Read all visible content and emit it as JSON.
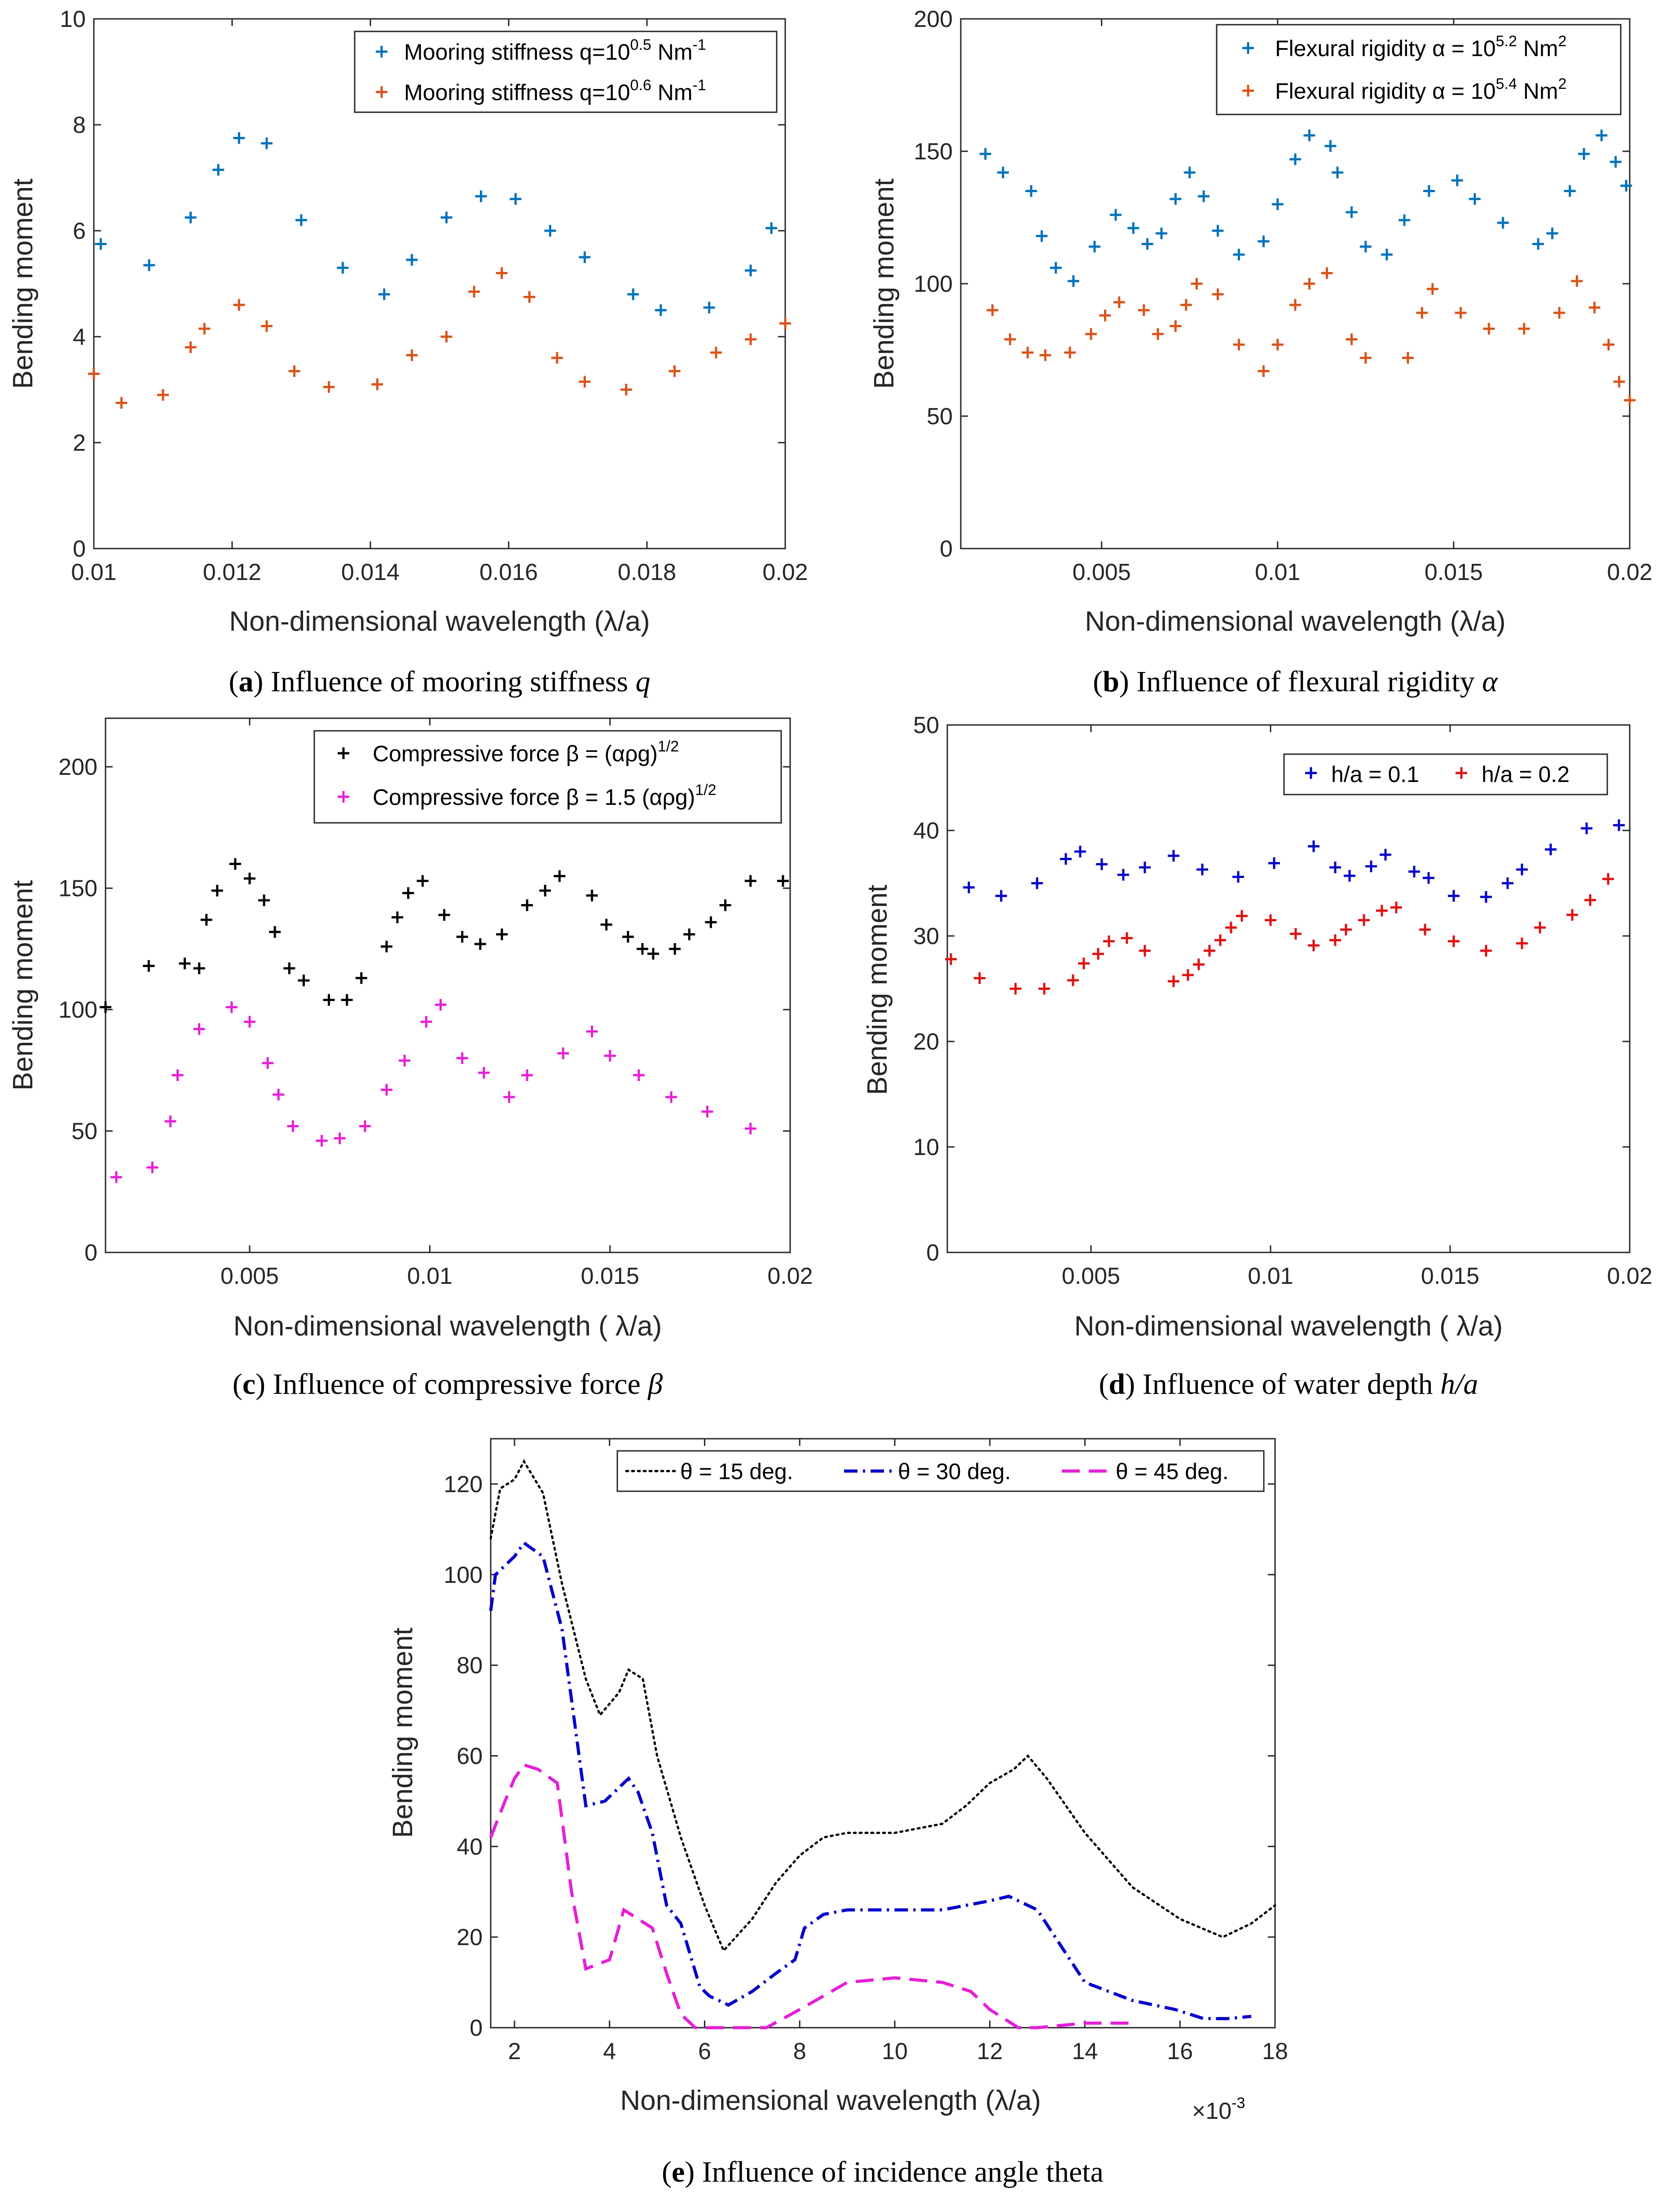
{
  "chart_data": [
    {
      "id": "a",
      "type": "scatter",
      "caption": {
        "letter": "a",
        "text": " Influence of mooring stiffness ",
        "symbol": "q"
      },
      "xlabel": "Non-dimensional wavelength (λ/a)",
      "ylabel": "Bending moment",
      "xlim": [
        0.01,
        0.02
      ],
      "ylim": [
        0,
        10
      ],
      "xticks": [
        0.01,
        0.012,
        0.014,
        0.016,
        0.018,
        0.02
      ],
      "xtick_labels": [
        "0.01",
        "0.012",
        "0.014",
        "0.016",
        "0.018",
        "0.02"
      ],
      "yticks": [
        0,
        2,
        4,
        6,
        8,
        10
      ],
      "ytick_labels": [
        "0",
        "2",
        "4",
        "6",
        "8",
        "10"
      ],
      "legend_position": "top-right",
      "series": [
        {
          "name_pre": "Mooring stiffness q=10",
          "name_sup": "0.5",
          "name_post": " Nm",
          "name_sup2": "-1",
          "color": "#0072BD",
          "x": [
            0.0101,
            0.0108,
            0.0114,
            0.0118,
            0.0121,
            0.0125,
            0.013,
            0.0136,
            0.0142,
            0.0146,
            0.0151,
            0.0156,
            0.0161,
            0.0166,
            0.0171,
            0.0178,
            0.0182,
            0.0189,
            0.0195,
            0.0198
          ],
          "y": [
            5.75,
            5.35,
            6.25,
            7.15,
            7.75,
            7.65,
            6.2,
            5.3,
            4.8,
            5.45,
            6.25,
            6.65,
            6.6,
            6.0,
            5.5,
            4.8,
            4.5,
            4.55,
            5.25,
            6.05
          ]
        },
        {
          "name_pre": "Mooring stiffness q=10",
          "name_sup": "0.6",
          "name_post": " Nm",
          "name_sup2": "-1",
          "color": "#D95319",
          "x": [
            0.01,
            0.0104,
            0.011,
            0.0114,
            0.0116,
            0.0121,
            0.0125,
            0.0129,
            0.0134,
            0.0141,
            0.0146,
            0.0151,
            0.0155,
            0.0159,
            0.0163,
            0.0167,
            0.0171,
            0.0177,
            0.0184,
            0.019,
            0.0195,
            0.02
          ],
          "y": [
            3.3,
            2.75,
            2.9,
            3.8,
            4.15,
            4.6,
            4.2,
            3.35,
            3.05,
            3.1,
            3.65,
            4.0,
            4.85,
            5.2,
            4.75,
            3.6,
            3.15,
            3.0,
            3.35,
            3.7,
            3.95,
            4.25
          ]
        }
      ]
    },
    {
      "id": "b",
      "type": "scatter",
      "caption": {
        "letter": "b",
        "text": " Influence of flexural rigidity ",
        "symbol": "α"
      },
      "xlabel": "Non-dimensional wavelength (λ/a)",
      "ylabel": "Bending moment",
      "xlim": [
        0.001,
        0.02
      ],
      "ylim": [
        0,
        200
      ],
      "xticks": [
        0.005,
        0.01,
        0.015,
        0.02
      ],
      "xtick_labels": [
        "0.005",
        "0.01",
        "0.015",
        "0.02"
      ],
      "yticks": [
        0,
        50,
        100,
        150,
        200
      ],
      "ytick_labels": [
        "0",
        "50",
        "100",
        "150",
        "200"
      ],
      "legend_position": "top-right",
      "series": [
        {
          "name_pre": "Flexural rigidity α = 10",
          "name_sup": "5.2",
          "name_post": " Nm",
          "name_sup2": "2",
          "color": "#0072BD",
          "x": [
            0.0017,
            0.0022,
            0.003,
            0.0033,
            0.0037,
            0.0042,
            0.0048,
            0.0054,
            0.0059,
            0.0063,
            0.0067,
            0.0071,
            0.0075,
            0.0079,
            0.0083,
            0.0089,
            0.0096,
            0.01,
            0.0105,
            0.0109,
            0.0115,
            0.0117,
            0.0121,
            0.0125,
            0.0131,
            0.0136,
            0.0143,
            0.0151,
            0.0156,
            0.0164,
            0.0174,
            0.0178,
            0.0183,
            0.0187,
            0.0192,
            0.0196,
            0.0199
          ],
          "y": [
            149,
            142,
            135,
            118,
            106,
            101,
            114,
            126,
            121,
            115,
            119,
            132,
            142,
            133,
            120,
            111,
            116,
            130,
            147,
            156,
            152,
            142,
            127,
            114,
            111,
            124,
            135,
            139,
            132,
            123,
            115,
            119,
            135,
            149,
            156,
            146,
            137
          ]
        },
        {
          "name_pre": "Flexural rigidity α = 10",
          "name_sup": "5.4",
          "name_post": " Nm",
          "name_sup2": "2",
          "color": "#D95319",
          "x": [
            0.0019,
            0.0024,
            0.0029,
            0.0034,
            0.0041,
            0.0047,
            0.0051,
            0.0055,
            0.0062,
            0.0066,
            0.0071,
            0.0074,
            0.0077,
            0.0083,
            0.0089,
            0.0096,
            0.01,
            0.0105,
            0.0109,
            0.0114,
            0.0121,
            0.0125,
            0.0137,
            0.0141,
            0.0144,
            0.0152,
            0.016,
            0.017,
            0.018,
            0.0185,
            0.019,
            0.0194,
            0.0197,
            0.02
          ],
          "y": [
            90,
            79,
            74,
            73,
            74,
            81,
            88,
            93,
            90,
            81,
            84,
            92,
            100,
            96,
            77,
            67,
            77,
            92,
            100,
            104,
            79,
            72,
            72,
            89,
            98,
            89,
            83,
            83,
            89,
            101,
            91,
            77,
            63,
            56
          ]
        }
      ]
    },
    {
      "id": "c",
      "type": "scatter",
      "caption": {
        "letter": "c",
        "text": " Influence of compressive force ",
        "symbol": "β"
      },
      "xlabel": "Non-dimensional wavelength ( λ/a)",
      "ylabel": "Bending moment",
      "xlim": [
        0.001,
        0.02
      ],
      "ylim": [
        0,
        220
      ],
      "xticks": [
        0.005,
        0.01,
        0.015,
        0.02
      ],
      "xtick_labels": [
        "0.005",
        "0.01",
        "0.015",
        "0.02"
      ],
      "yticks": [
        0,
        50,
        100,
        150,
        200
      ],
      "ytick_labels": [
        "0",
        "50",
        "100",
        "150",
        "200"
      ],
      "legend_position": "top-right",
      "series": [
        {
          "name_pre": "Compressive force β = (αρg)",
          "name_sup": "1/2",
          "name_post": "",
          "name_sup2": "",
          "color": "#000000",
          "x": [
            0.001,
            0.0022,
            0.0032,
            0.0036,
            0.0038,
            0.0041,
            0.0046,
            0.005,
            0.0054,
            0.0057,
            0.0061,
            0.0065,
            0.0072,
            0.0077,
            0.0081,
            0.0088,
            0.0091,
            0.0094,
            0.0098,
            0.0104,
            0.0109,
            0.0114,
            0.012,
            0.0127,
            0.0132,
            0.0136,
            0.0145,
            0.0149,
            0.0155,
            0.0159,
            0.0162,
            0.0168,
            0.0172,
            0.0178,
            0.0182,
            0.0189,
            0.0198
          ],
          "y": [
            101,
            118,
            119,
            117,
            137,
            149,
            160,
            154,
            145,
            132,
            117,
            112,
            104,
            104,
            113,
            126,
            138,
            148,
            153,
            139,
            130,
            127,
            131,
            143,
            149,
            155,
            147,
            135,
            130,
            125,
            123,
            125,
            131,
            136,
            143,
            153,
            153
          ]
        },
        {
          "name_pre": "Compressive force β = 1.5 (αρg)",
          "name_sup": "1/2",
          "name_post": "",
          "name_sup2": "",
          "color": "#E61FD7",
          "x": [
            0.0013,
            0.0023,
            0.0028,
            0.003,
            0.0036,
            0.0045,
            0.005,
            0.0055,
            0.0058,
            0.0062,
            0.007,
            0.0075,
            0.0082,
            0.0088,
            0.0093,
            0.0099,
            0.0103,
            0.0109,
            0.0115,
            0.0122,
            0.0127,
            0.0137,
            0.0145,
            0.015,
            0.0158,
            0.0167,
            0.0177,
            0.0189
          ],
          "y": [
            31,
            35,
            54,
            73,
            92,
            101,
            95,
            78,
            65,
            52,
            46,
            47,
            52,
            67,
            79,
            95,
            102,
            80,
            74,
            64,
            73,
            82,
            91,
            81,
            73,
            64,
            58,
            51
          ]
        }
      ]
    },
    {
      "id": "d",
      "type": "scatter",
      "caption": {
        "letter": "d",
        "text": " Influence of water depth ",
        "symbol": "h/a"
      },
      "xlabel": "Non-dimensional wavelength ( λ/a)",
      "ylabel": "Bending moment",
      "xlim": [
        0.001,
        0.02
      ],
      "ylim": [
        0,
        50
      ],
      "xticks": [
        0.005,
        0.01,
        0.015,
        0.02
      ],
      "xtick_labels": [
        "0.005",
        "0.01",
        "0.015",
        "0.02"
      ],
      "yticks": [
        0,
        10,
        20,
        30,
        40,
        50
      ],
      "ytick_labels": [
        "0",
        "10",
        "20",
        "30",
        "40",
        "50"
      ],
      "legend_position": "top-right",
      "series": [
        {
          "name_pre": "h/a = 0.1",
          "name_sup": "",
          "name_post": "",
          "name_sup2": "",
          "color": "#0000CC",
          "x": [
            0.0016,
            0.0025,
            0.0035,
            0.0043,
            0.0047,
            0.0053,
            0.0059,
            0.0065,
            0.0073,
            0.0081,
            0.0091,
            0.0101,
            0.0112,
            0.0118,
            0.0122,
            0.0128,
            0.0132,
            0.014,
            0.0144,
            0.0151,
            0.016,
            0.0166,
            0.017,
            0.0178,
            0.0188,
            0.0197
          ],
          "y": [
            34.6,
            33.8,
            35.0,
            37.3,
            38.0,
            36.8,
            35.8,
            36.5,
            37.6,
            36.3,
            35.6,
            36.9,
            38.5,
            36.5,
            35.7,
            36.6,
            37.7,
            36.1,
            35.5,
            33.8,
            33.7,
            35.0,
            36.3,
            38.2,
            40.2,
            40.5
          ]
        },
        {
          "name_pre": "h/a = 0.2",
          "name_sup": "",
          "name_post": "",
          "name_sup2": "",
          "color": "#E01010",
          "x": [
            0.0011,
            0.0019,
            0.0029,
            0.0037,
            0.0045,
            0.0048,
            0.0052,
            0.0055,
            0.006,
            0.0065,
            0.0073,
            0.0077,
            0.008,
            0.0083,
            0.0086,
            0.0089,
            0.0092,
            0.01,
            0.0107,
            0.0112,
            0.0118,
            0.0121,
            0.0126,
            0.0131,
            0.0135,
            0.0143,
            0.0151,
            0.016,
            0.017,
            0.0175,
            0.0184,
            0.0189,
            0.0194
          ],
          "y": [
            27.8,
            26.0,
            25.0,
            25.0,
            25.8,
            27.4,
            28.3,
            29.5,
            29.8,
            28.6,
            25.7,
            26.3,
            27.3,
            28.6,
            29.6,
            30.8,
            31.9,
            31.5,
            30.2,
            29.1,
            29.6,
            30.6,
            31.5,
            32.4,
            32.7,
            30.6,
            29.5,
            28.6,
            29.3,
            30.8,
            32.0,
            33.4,
            35.4
          ]
        }
      ]
    },
    {
      "id": "e",
      "type": "line",
      "caption": {
        "letter": "e",
        "text": " Influence of incidence angle theta",
        "symbol": ""
      },
      "xlabel": "Non-dimensional wavelength (λ/a)",
      "ylabel": "Bending moment",
      "x_multiplier": "×10",
      "x_multiplier_exp": "-3",
      "xlim": [
        1.5,
        18
      ],
      "ylim": [
        0,
        130
      ],
      "xticks": [
        2,
        4,
        6,
        8,
        10,
        12,
        14,
        16,
        18
      ],
      "xtick_labels": [
        "2",
        "4",
        "6",
        "8",
        "10",
        "12",
        "14",
        "16",
        "18"
      ],
      "yticks": [
        0,
        20,
        40,
        60,
        80,
        100,
        120
      ],
      "ytick_labels": [
        "0",
        "20",
        "40",
        "60",
        "80",
        "100",
        "120"
      ],
      "legend_position": "top",
      "series": [
        {
          "name": "θ = 15 deg.",
          "style": "dotted",
          "color": "#000000",
          "x": [
            1.5,
            1.7,
            2.0,
            2.2,
            2.6,
            3.0,
            3.5,
            3.8,
            4.2,
            4.4,
            4.7,
            5.0,
            5.5,
            6.0,
            6.4,
            7.0,
            7.5,
            8.0,
            8.5,
            9.0,
            10.0,
            11.0,
            11.5,
            12.0,
            12.5,
            12.8,
            13.2,
            14.0,
            15.0,
            16.0,
            16.9,
            17.5,
            18.0
          ],
          "y": [
            108,
            119,
            121,
            125,
            118,
            98,
            77,
            69,
            74,
            79,
            77,
            60,
            42,
            27,
            17,
            24,
            32,
            38,
            42,
            43,
            43,
            45,
            49,
            54,
            57,
            60,
            55,
            43,
            31,
            24,
            20,
            23,
            27
          ]
        },
        {
          "name": "θ = 30 deg.",
          "style": "dashdot",
          "color": "#0000CC",
          "x": [
            1.5,
            1.6,
            2.0,
            2.2,
            2.6,
            3.0,
            3.5,
            3.9,
            4.1,
            4.4,
            4.6,
            4.9,
            5.2,
            5.5,
            5.9,
            6.1,
            6.5,
            7.0,
            7.5,
            7.9,
            8.1,
            8.5,
            9.0,
            10.0,
            11.0,
            11.5,
            12.0,
            12.4,
            13.0,
            14.0,
            15.0,
            15.9,
            16.5,
            17.0,
            17.5
          ],
          "y": [
            92,
            100,
            104,
            107,
            104,
            88,
            49,
            50,
            52,
            55,
            52,
            43,
            27,
            23,
            9,
            7,
            5,
            8,
            12,
            15,
            22,
            25,
            26,
            26,
            26,
            27,
            28,
            29,
            26,
            10,
            6,
            4,
            2,
            2,
            2.5
          ]
        },
        {
          "name": "θ = 45 deg.",
          "style": "dashed",
          "color": "#E61FD7",
          "x": [
            1.5,
            1.8,
            2.0,
            2.2,
            2.5,
            2.9,
            3.2,
            3.5,
            4.0,
            4.3,
            4.6,
            4.9,
            5.2,
            5.5,
            5.8,
            6.2,
            6.8,
            7.3,
            8.0,
            8.5,
            9.0,
            10.0,
            11.0,
            11.6,
            12.0,
            12.6,
            13.0,
            14.0,
            15.0
          ],
          "y": [
            42,
            50,
            55,
            58,
            57,
            54,
            30,
            13,
            15,
            26,
            24,
            22,
            12,
            3,
            0,
            0,
            0,
            0,
            4,
            7,
            10,
            11,
            10,
            8,
            4,
            0,
            0,
            1,
            1
          ]
        }
      ]
    }
  ]
}
